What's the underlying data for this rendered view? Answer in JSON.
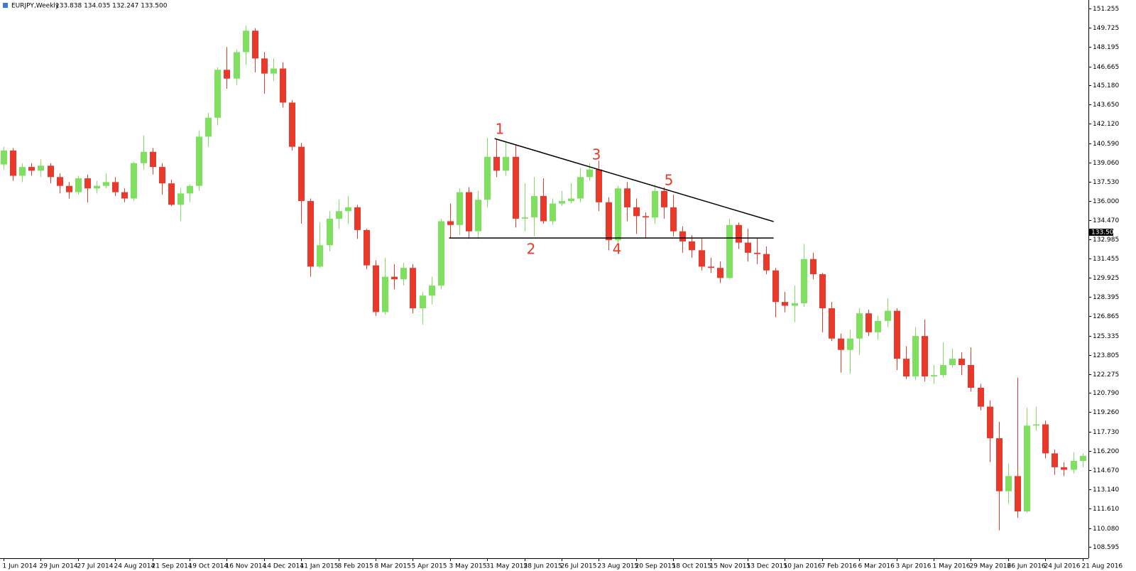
{
  "chart_data": {
    "type": "candlestick",
    "title": "EURJPY,Weekly",
    "subtitle": "133.838 134.035 132.247 133.500",
    "bull_color": "#7ee05e",
    "bear_color": "#e8392a",
    "categories": [
      "1 Jun 2014",
      null,
      null,
      null,
      "29 Jun 2014",
      null,
      null,
      null,
      "27 Jul 2014",
      null,
      null,
      null,
      "24 Aug 2014",
      null,
      null,
      null,
      "21 Sep 2014",
      null,
      null,
      null,
      "19 Oct 2014",
      null,
      null,
      null,
      "16 Nov 2014",
      null,
      null,
      null,
      "14 Dec 2014",
      null,
      null,
      null,
      "11 Jan 2015",
      null,
      null,
      null,
      "8 Feb 2015",
      null,
      null,
      null,
      "8 Mar 2015",
      null,
      null,
      null,
      "5 Apr 2015",
      null,
      null,
      null,
      "3 May 2015",
      null,
      null,
      null,
      "31 May 2015",
      null,
      null,
      null,
      "28 Jun 2015",
      null,
      null,
      null,
      "26 Jul 2015",
      null,
      null,
      null,
      "23 Aug 2015",
      null,
      null,
      null,
      "20 Sep 2015",
      null,
      null,
      null,
      "18 Oct 2015",
      null,
      null,
      null,
      "15 Nov 2015",
      null,
      null,
      null,
      "13 Dec 2015",
      null,
      null,
      null,
      "10 Jan 2016",
      null,
      null,
      null,
      "7 Feb 2016",
      null,
      null,
      null,
      "6 Mar 2016",
      null,
      null,
      null,
      "3 Apr 2016",
      null,
      null,
      null,
      "1 May 2016",
      null,
      null,
      null,
      "29 May 2016",
      null,
      null,
      null,
      "26 Jun 2016",
      null,
      null,
      null,
      "24 Jul 2016",
      null,
      null,
      null,
      "21 Aug 2016"
    ],
    "open": [
      138.9,
      140.0,
      138.0,
      138.7,
      138.4,
      138.8,
      137.9,
      137.2,
      136.7,
      137.8,
      137.0,
      137.2,
      137.5,
      136.7,
      136.2,
      139.0,
      139.9,
      138.7,
      137.4,
      135.7,
      136.6,
      137.2,
      141.1,
      142.6,
      146.4,
      145.7,
      147.8,
      149.5,
      147.3,
      146.1,
      146.5,
      143.8,
      140.3,
      136.0,
      130.8,
      132.5,
      134.6,
      135.2,
      135.5,
      133.7,
      130.9,
      127.2,
      130.0,
      129.8,
      130.7,
      127.5,
      128.5,
      129.3,
      134.4,
      134.1,
      136.7,
      133.6,
      136.1,
      139.5,
      138.4,
      139.5,
      134.6,
      134.7,
      136.4,
      134.4,
      135.8,
      136.0,
      136.2,
      137.9,
      138.5,
      135.9,
      132.9,
      137.0,
      135.5,
      134.8,
      134.7,
      136.8,
      135.5,
      133.6,
      132.8,
      132.1,
      130.8,
      130.7,
      129.9,
      134.1,
      132.7,
      131.9,
      131.8,
      130.5,
      128.0,
      127.7,
      127.9,
      131.4,
      130.2,
      127.5,
      125.1,
      124.2,
      125.1,
      127.1,
      125.6,
      126.5,
      127.3,
      123.5,
      122.1,
      125.3,
      122.1,
      122.2,
      123.0,
      123.5,
      123.0,
      121.2,
      119.7,
      117.2,
      113.0,
      114.2,
      111.4,
      118.2,
      118.3,
      116.0,
      114.9,
      114.7,
      115.4
    ],
    "high": [
      140.3,
      140.2,
      139.0,
      139.0,
      139.3,
      139.0,
      138.2,
      137.5,
      138.0,
      138.1,
      137.6,
      138.2,
      137.9,
      137.0,
      139.1,
      141.2,
      140.2,
      139.0,
      137.7,
      137.0,
      137.3,
      141.6,
      143.0,
      146.6,
      148.2,
      148.0,
      149.9,
      149.7,
      147.8,
      147.3,
      147.0,
      144.0,
      140.6,
      136.2,
      134.3,
      135.2,
      136.1,
      136.4,
      135.7,
      133.8,
      131.3,
      131.5,
      131.0,
      131.1,
      131.0,
      128.8,
      130.0,
      134.6,
      135.8,
      137.0,
      137.1,
      136.8,
      141.0,
      140.9,
      140.7,
      140.5,
      137.4,
      137.9,
      137.8,
      136.2,
      136.8,
      137.4,
      138.6,
      139.0,
      139.2,
      136.3,
      137.2,
      137.5,
      136.2,
      135.1,
      137.3,
      137.1,
      136.5,
      134.0,
      133.3,
      133.0,
      131.5,
      131.2,
      134.6,
      134.3,
      133.8,
      133.1,
      132.4,
      130.7,
      128.8,
      129.3,
      132.6,
      131.9,
      130.3,
      128.0,
      125.5,
      125.8,
      127.5,
      127.4,
      126.9,
      128.3,
      127.5,
      124.5,
      126.0,
      126.6,
      123.0,
      124.8,
      124.3,
      124.0,
      124.4,
      121.5,
      120.2,
      118.5,
      115.2,
      122.0,
      119.6,
      119.7,
      118.6,
      116.3,
      115.3,
      116.1,
      116.0
    ],
    "low": [
      138.5,
      137.6,
      137.5,
      138.0,
      137.9,
      137.4,
      136.6,
      136.2,
      136.5,
      135.9,
      136.6,
      137.0,
      136.4,
      135.9,
      136.0,
      138.5,
      138.1,
      136.5,
      135.6,
      134.4,
      135.9,
      136.8,
      140.3,
      142.0,
      144.9,
      145.2,
      146.8,
      146.2,
      144.5,
      145.5,
      143.4,
      140.0,
      134.2,
      130.0,
      130.7,
      132.0,
      133.8,
      134.2,
      133.0,
      130.6,
      126.9,
      127.0,
      129.0,
      129.3,
      127.1,
      126.2,
      127.8,
      129.0,
      133.1,
      133.3,
      133.0,
      133.0,
      135.5,
      137.9,
      138.0,
      133.9,
      133.6,
      133.2,
      134.2,
      134.1,
      135.6,
      135.8,
      135.9,
      137.6,
      135.2,
      132.1,
      132.7,
      134.4,
      133.4,
      133.1,
      134.2,
      134.6,
      133.2,
      131.9,
      131.5,
      130.5,
      130.3,
      129.5,
      129.8,
      132.2,
      131.2,
      131.0,
      130.2,
      126.8,
      127.2,
      126.4,
      127.6,
      129.8,
      125.6,
      124.9,
      122.4,
      122.3,
      123.8,
      125.3,
      125.0,
      126.0,
      122.6,
      121.9,
      121.8,
      121.7,
      121.5,
      122.0,
      122.8,
      122.2,
      120.9,
      119.4,
      115.3,
      109.9,
      112.0,
      110.9,
      111.3,
      117.8,
      115.6,
      114.3,
      114.2,
      114.4,
      114.9
    ],
    "close": [
      140.0,
      138.0,
      138.7,
      138.4,
      138.8,
      137.9,
      137.2,
      136.7,
      137.8,
      137.0,
      137.2,
      137.5,
      136.7,
      136.2,
      139.0,
      139.9,
      138.7,
      137.4,
      135.7,
      136.6,
      137.2,
      141.1,
      142.6,
      146.4,
      145.7,
      147.8,
      149.5,
      147.3,
      146.1,
      146.5,
      143.8,
      140.3,
      136.0,
      130.8,
      132.5,
      134.6,
      135.2,
      135.5,
      133.7,
      130.9,
      127.2,
      130.0,
      129.8,
      130.7,
      127.5,
      128.5,
      129.3,
      134.4,
      134.1,
      136.7,
      133.6,
      136.1,
      139.5,
      138.4,
      139.5,
      134.6,
      134.7,
      136.4,
      134.4,
      135.8,
      136.0,
      136.2,
      137.9,
      138.5,
      135.9,
      132.9,
      137.0,
      135.5,
      134.8,
      134.7,
      136.8,
      135.5,
      133.6,
      132.8,
      132.1,
      130.8,
      130.7,
      129.9,
      134.1,
      132.7,
      131.9,
      131.8,
      130.5,
      128.0,
      127.7,
      127.9,
      131.4,
      130.2,
      127.5,
      125.1,
      124.2,
      125.1,
      127.1,
      125.6,
      126.5,
      127.3,
      123.5,
      122.1,
      125.3,
      122.1,
      122.2,
      123.0,
      123.5,
      123.0,
      121.2,
      119.7,
      117.2,
      113.0,
      114.2,
      111.4,
      118.2,
      118.3,
      116.0,
      114.9,
      114.7,
      115.4,
      115.8
    ],
    "ylim": [
      107.69,
      151.82
    ],
    "yticks": [
      151.255,
      149.725,
      148.195,
      146.665,
      {
        "value": 145.18,
        "label": "145.180"
      },
      {
        "value": 143.65,
        "label": "143.650"
      },
      {
        "value": 142.12,
        "label": "142.120"
      },
      {
        "value": 140.59,
        "label": "140.590"
      },
      {
        "value": 139.06,
        "label": "139.060"
      },
      {
        "value": 137.53,
        "label": "137.530"
      },
      {
        "value": 136,
        "label": "136.000"
      },
      {
        "value": 134.47,
        "label": "134.470"
      },
      132.985,
      131.455,
      129.925,
      128.395,
      126.865,
      125.335,
      123.805,
      122.275,
      {
        "value": 120.79,
        "label": "120.790"
      },
      {
        "value": 119.26,
        "label": "119.260"
      },
      {
        "value": 117.73,
        "label": "117.730"
      },
      {
        "value": 116.2,
        "label": "116.200"
      },
      {
        "value": 114.67,
        "label": "114.670"
      },
      {
        "value": 113.14,
        "label": "113.140"
      },
      {
        "value": 111.61,
        "label": "111.610"
      },
      {
        "value": 110.08,
        "label": "110.080"
      },
      108.595
    ],
    "current_price": {
      "value": 133.5,
      "label": "133.500"
    },
    "trend_lines": [
      {
        "x": [
          52.8,
          82.8
        ],
        "y": [
          140.95,
          134.37
        ]
      },
      {
        "x": [
          47.9,
          82.8
        ],
        "y": [
          133.07,
          133.07
        ]
      }
    ],
    "annotations": [
      "1",
      "2",
      "3",
      "4",
      "5"
    ]
  }
}
